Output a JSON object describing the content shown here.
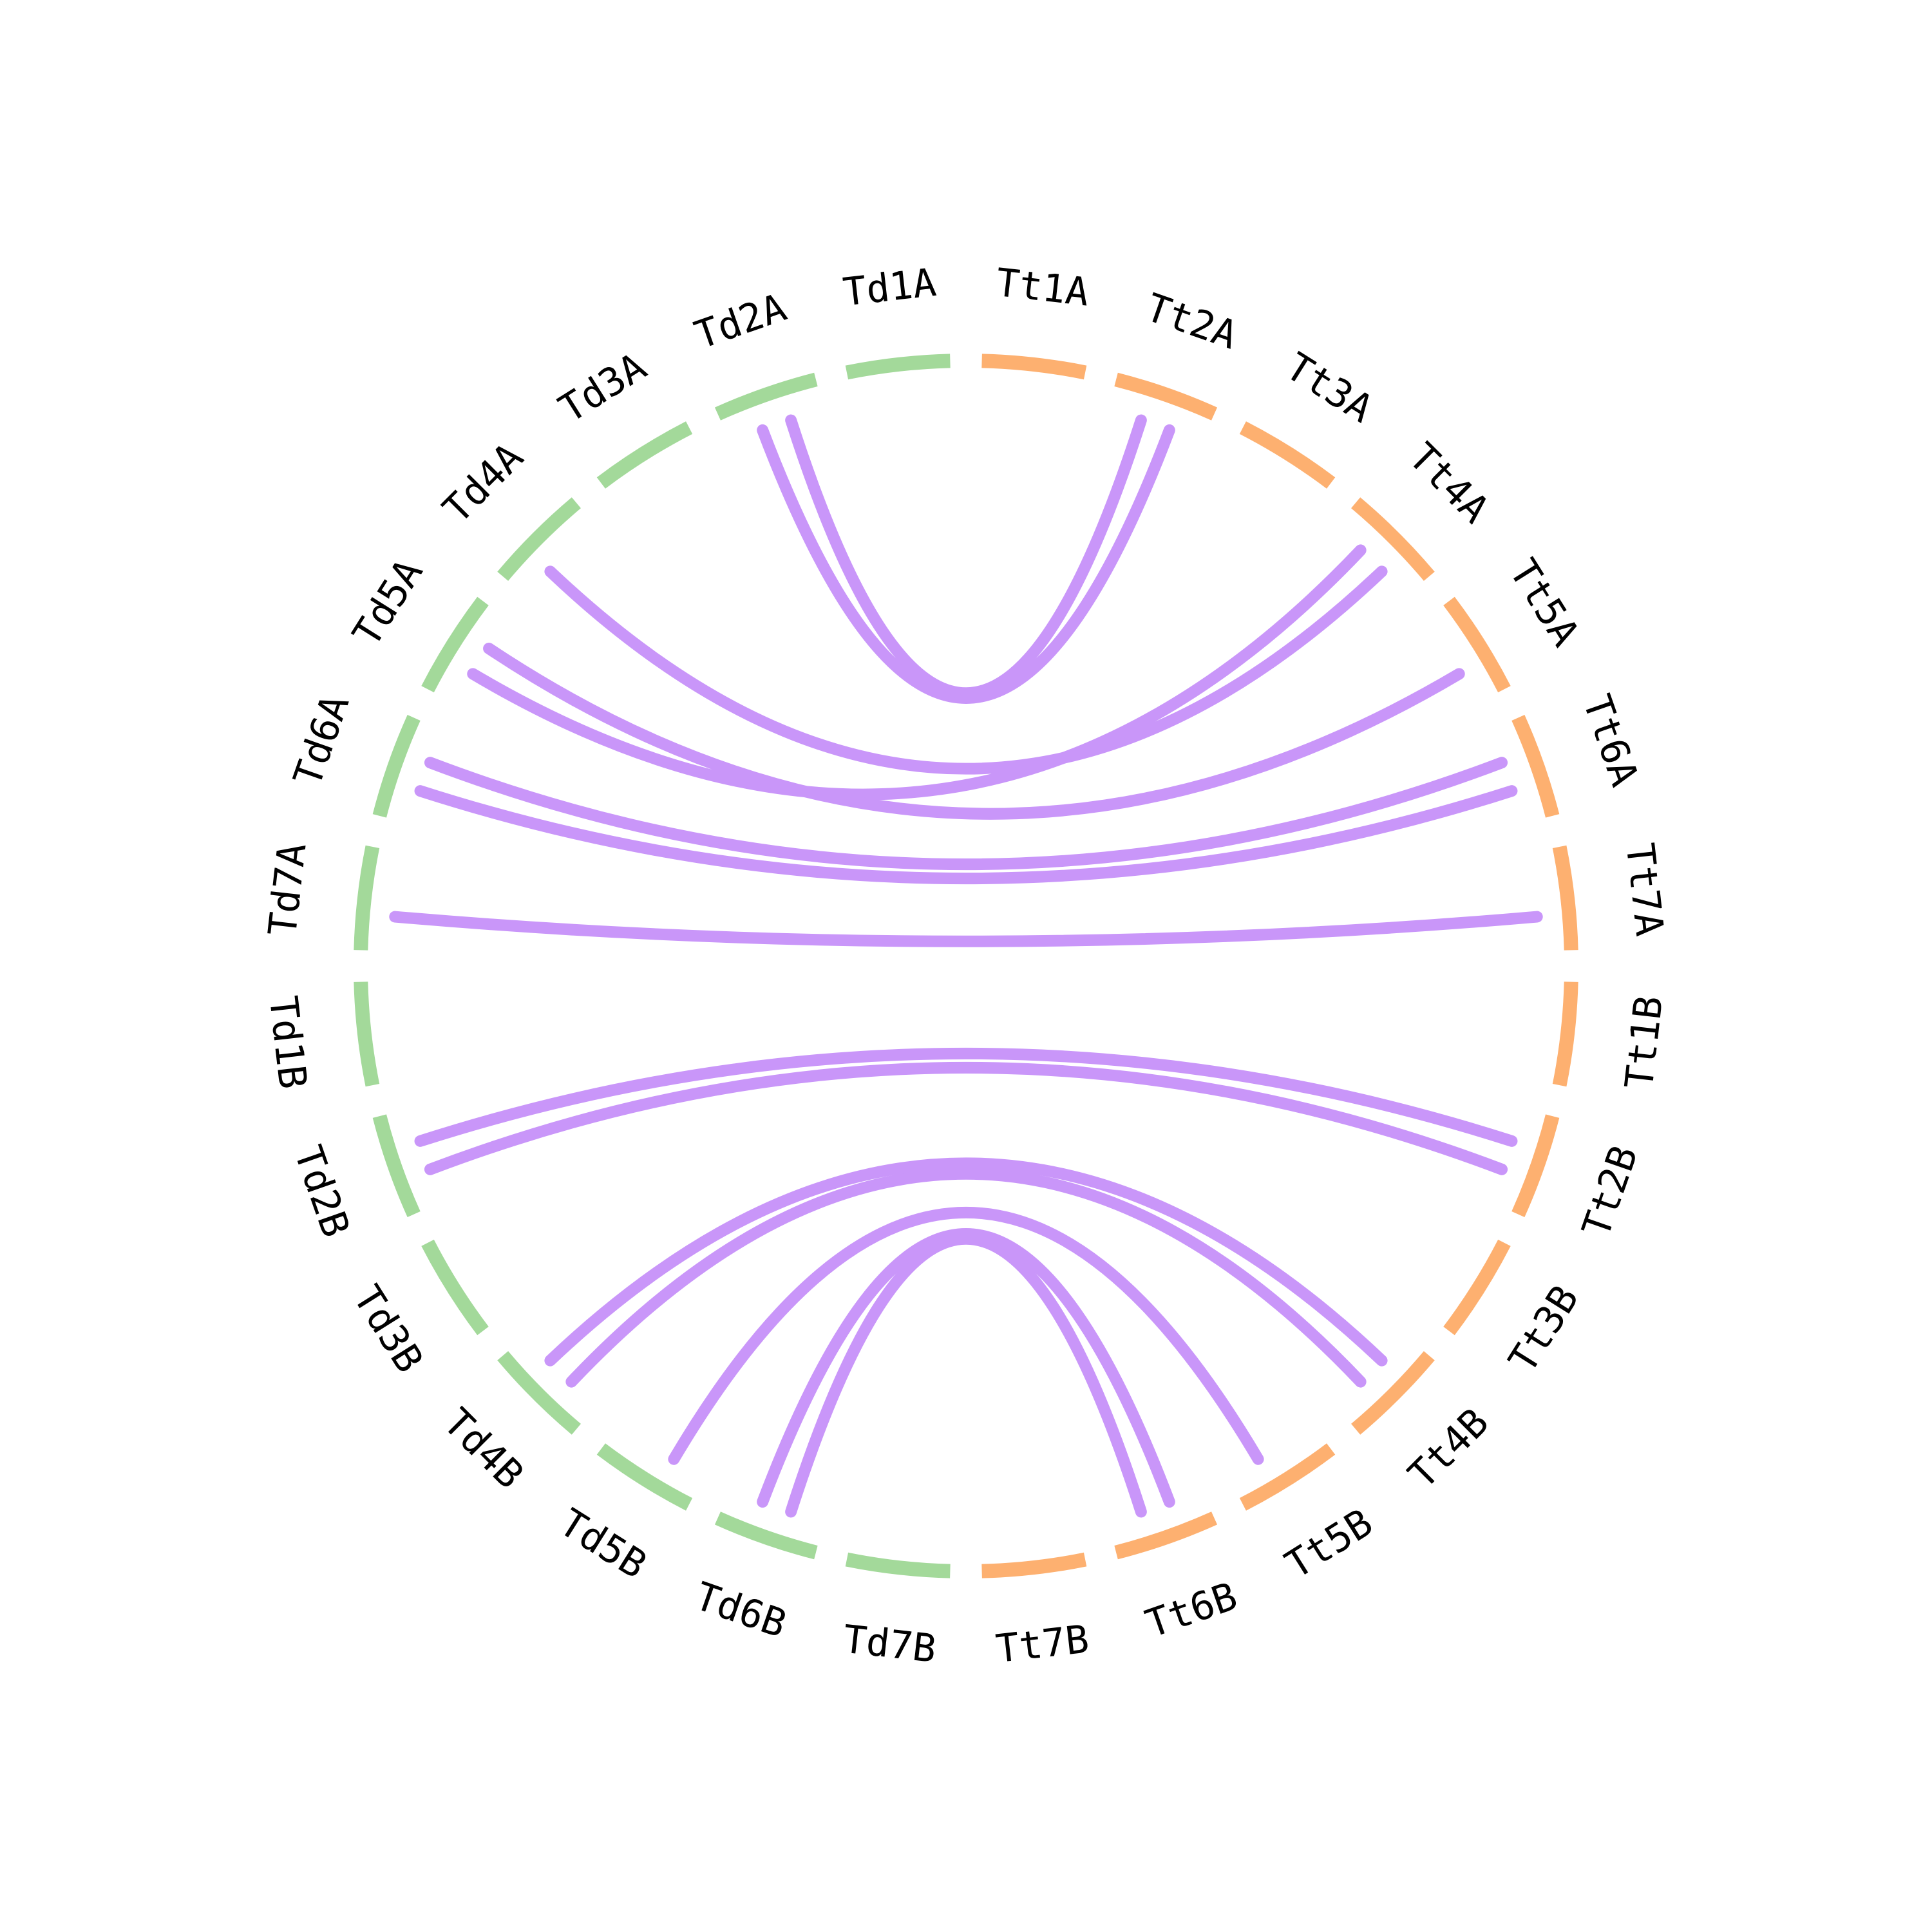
{
  "colors": {
    "td": "#a3d99a",
    "tt": "#fdb070",
    "link": "#c996f9"
  },
  "segments": [
    {
      "label": "Td1A",
      "group": "td"
    },
    {
      "label": "Td2A",
      "group": "td"
    },
    {
      "label": "Td3A",
      "group": "td"
    },
    {
      "label": "Td4A",
      "group": "td"
    },
    {
      "label": "Td5A",
      "group": "td"
    },
    {
      "label": "Td6A",
      "group": "td"
    },
    {
      "label": "Td7A",
      "group": "td"
    },
    {
      "label": "Td1B",
      "group": "td"
    },
    {
      "label": "Td2B",
      "group": "td"
    },
    {
      "label": "Td3B",
      "group": "td"
    },
    {
      "label": "Td4B",
      "group": "td"
    },
    {
      "label": "Td5B",
      "group": "td"
    },
    {
      "label": "Td6B",
      "group": "td"
    },
    {
      "label": "Td7B",
      "group": "td"
    },
    {
      "label": "Tt7B",
      "group": "tt"
    },
    {
      "label": "Tt6B",
      "group": "tt"
    },
    {
      "label": "Tt5B",
      "group": "tt"
    },
    {
      "label": "Tt4B",
      "group": "tt"
    },
    {
      "label": "Tt3B",
      "group": "tt"
    },
    {
      "label": "Tt2B",
      "group": "tt"
    },
    {
      "label": "Tt1B",
      "group": "tt"
    },
    {
      "label": "Tt7A",
      "group": "tt"
    },
    {
      "label": "Tt6A",
      "group": "tt"
    },
    {
      "label": "Tt5A",
      "group": "tt"
    },
    {
      "label": "Tt4A",
      "group": "tt"
    },
    {
      "label": "Tt3A",
      "group": "tt"
    },
    {
      "label": "Tt2A",
      "group": "tt"
    },
    {
      "label": "Tt1A",
      "group": "tt"
    }
  ],
  "links": [
    {
      "from": "Td2A",
      "to": "Tt2A"
    },
    {
      "from": "Td2A",
      "to": "Tt2A"
    },
    {
      "from": "Td4A",
      "to": "Tt4A"
    },
    {
      "from": "Td5A",
      "to": "Tt4A"
    },
    {
      "from": "Td5A",
      "to": "Tt5A"
    },
    {
      "from": "Td6A",
      "to": "Tt6A"
    },
    {
      "from": "Td6A",
      "to": "Tt6A"
    },
    {
      "from": "Td7A",
      "to": "Tt7A"
    },
    {
      "from": "Td2B",
      "to": "Tt2B"
    },
    {
      "from": "Td2B",
      "to": "Tt2B"
    },
    {
      "from": "Td4B",
      "to": "Tt4B"
    },
    {
      "from": "Td4B",
      "to": "Tt4B"
    },
    {
      "from": "Td5B",
      "to": "Tt5B"
    },
    {
      "from": "Td6B",
      "to": "Tt6B"
    },
    {
      "from": "Td6B",
      "to": "Tt6B"
    }
  ]
}
